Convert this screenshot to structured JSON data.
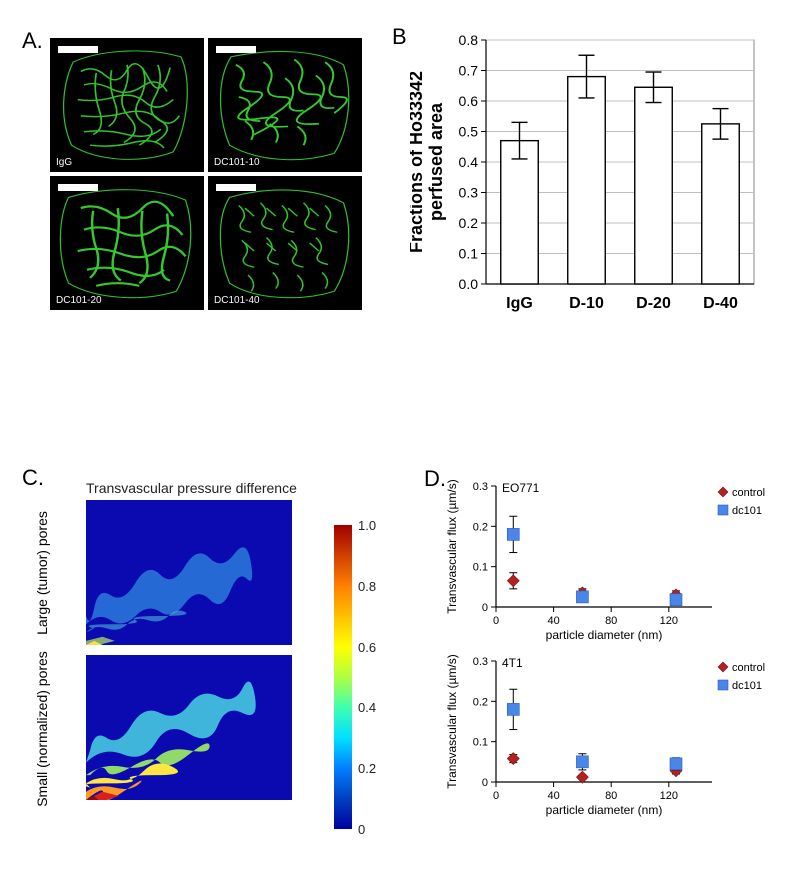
{
  "panel_labels": {
    "a": "A.",
    "b": "B",
    "c": "C.",
    "d": "D."
  },
  "panel_a": {
    "tiles": [
      {
        "label": "IgG"
      },
      {
        "label": "DC101-10"
      },
      {
        "label": "DC101-20"
      },
      {
        "label": "DC101-40"
      }
    ],
    "vessel_color": "#39d332",
    "outline_color": "#2fbf2f",
    "bg": "#000000"
  },
  "panel_b": {
    "type": "bar",
    "ylabel": "Fractions of Ho33342 perfused area",
    "categories": [
      "IgG",
      "D-10",
      "D-20",
      "D-40"
    ],
    "values": [
      0.47,
      0.68,
      0.645,
      0.525
    ],
    "err": [
      0.06,
      0.07,
      0.05,
      0.05
    ],
    "ylim": [
      0,
      0.8
    ],
    "ytick_step": 0.1,
    "bar_fill": "#ffffff",
    "bar_stroke": "#000000",
    "axis_color": "#000000",
    "grid_color": "#c0c0c0",
    "border_color": "#888888",
    "bg": "#ffffff",
    "bar_width": 0.56,
    "label_fontsize": 16,
    "ylabel_fontsize": 18,
    "tick_fontsize": 14
  },
  "panel_c": {
    "title": "Transvascular pressure difference",
    "rows": [
      {
        "label": "Large (tumor) pores"
      },
      {
        "label": "Small (normalized) pores"
      }
    ],
    "bg": "#0a0ab0",
    "colorbar": {
      "min": 0,
      "max": 1.0,
      "ticks": [
        0,
        0.2,
        0.4,
        0.6,
        0.8,
        1.0
      ],
      "tick_fontsize": 13
    }
  },
  "panel_d": {
    "type": "scatter-errorbar",
    "subplots": [
      {
        "title": "EO771",
        "ylabel": "Transvascular flux (µm/s)",
        "xlabel": "particle diameter (nm)",
        "xlim": [
          0,
          150
        ],
        "xticks": [
          0,
          40,
          80,
          120
        ],
        "ylim": [
          0,
          0.3
        ],
        "yticks": [
          0,
          0.1,
          0.2,
          0.3
        ],
        "series": [
          {
            "name": "control",
            "marker": "diamond",
            "color": "#b22222",
            "points": [
              {
                "x": 12,
                "y": 0.065,
                "err": 0.02
              },
              {
                "x": 60,
                "y": 0.035,
                "err": 0.01
              },
              {
                "x": 125,
                "y": 0.03,
                "err": 0.01
              }
            ]
          },
          {
            "name": "dc101",
            "marker": "square",
            "color": "#4a86e8",
            "points": [
              {
                "x": 12,
                "y": 0.18,
                "err": 0.045
              },
              {
                "x": 60,
                "y": 0.025,
                "err": 0.01
              },
              {
                "x": 125,
                "y": 0.018,
                "err": 0.008
              }
            ]
          }
        ]
      },
      {
        "title": "4T1",
        "ylabel": "Transvascular flux (µm/s)",
        "xlabel": "particle diameter (nm)",
        "xlim": [
          0,
          150
        ],
        "xticks": [
          0,
          40,
          80,
          120
        ],
        "ylim": [
          0,
          0.3
        ],
        "yticks": [
          0,
          0.1,
          0.2,
          0.3
        ],
        "series": [
          {
            "name": "control",
            "marker": "diamond",
            "color": "#b22222",
            "points": [
              {
                "x": 12,
                "y": 0.058,
                "err": 0.01
              },
              {
                "x": 60,
                "y": 0.012,
                "err": 0.005
              },
              {
                "x": 125,
                "y": 0.028,
                "err": 0.008
              }
            ]
          },
          {
            "name": "dc101",
            "marker": "square",
            "color": "#4a86e8",
            "points": [
              {
                "x": 12,
                "y": 0.18,
                "err": 0.05
              },
              {
                "x": 60,
                "y": 0.05,
                "err": 0.02
              },
              {
                "x": 125,
                "y": 0.045,
                "err": 0.015
              }
            ]
          }
        ]
      }
    ],
    "legend": [
      {
        "name": "control",
        "marker": "diamond",
        "color": "#b22222"
      },
      {
        "name": "dc101",
        "marker": "square",
        "color": "#4a86e8"
      }
    ],
    "title_fontsize": 12,
    "label_fontsize": 12,
    "tick_fontsize": 11
  }
}
